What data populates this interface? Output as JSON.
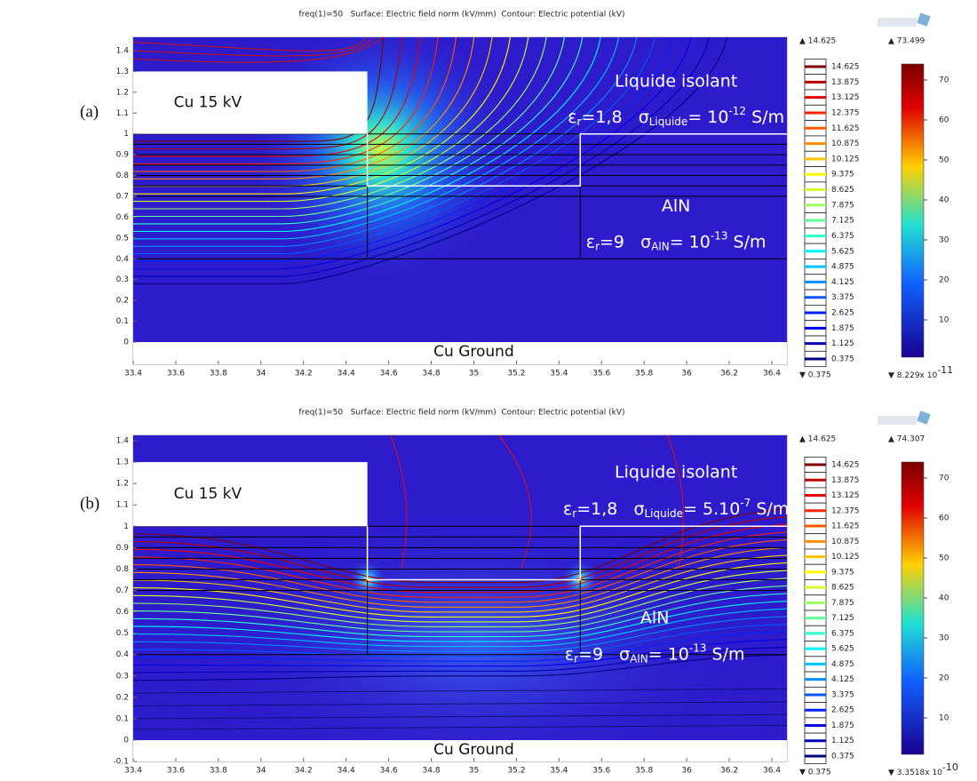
{
  "panels": [
    {
      "label": "(a)",
      "title": "freq(1)=50   Surface: Electric field norm (kV/mm)  Contour: Electric potential (kV)",
      "xticks": [
        33.4,
        33.6,
        33.8,
        34,
        34.2,
        34.4,
        34.6,
        34.8,
        35,
        35.2,
        35.4,
        35.6,
        35.8,
        36,
        36.2,
        36.4
      ],
      "yticks": [
        1.4,
        1.3,
        1.2,
        1.1,
        1,
        0.9,
        0.8,
        0.7,
        0.6,
        0.5,
        0.4,
        0.3,
        0.2,
        0.1,
        0
      ],
      "cu_electrode": "Cu 15 kV",
      "cu_ground": "Cu Ground",
      "liquid_name": "Liquide isolant",
      "liquid_props": [
        "ε",
        "r",
        "=1,8   σ",
        "Liquide",
        "= 10",
        "-12",
        " S/m"
      ],
      "aln_name": "AlN",
      "aln_props": [
        "ε",
        "r",
        "=9   σ",
        "AlN",
        "= 10",
        "-13",
        " S/m"
      ],
      "contour_max": "▲ 14.625",
      "contour_levels": [
        14.625,
        13.875,
        13.125,
        12.375,
        11.625,
        10.875,
        10.125,
        9.375,
        8.625,
        7.875,
        7.125,
        6.375,
        5.625,
        4.875,
        4.125,
        3.375,
        2.625,
        1.875,
        1.125,
        0.375
      ],
      "contour_min": "▼ 0.375",
      "colorbar_max": "▲ 73.499",
      "colorbar_ticks": [
        70,
        60,
        50,
        40,
        30,
        20,
        10
      ],
      "colorbar_min": "▼ 8.229x 10",
      "colorbar_min_exp": "-11"
    },
    {
      "label": "(b)",
      "title": "freq(1)=50   Surface: Electric field norm (kV/mm)  Contour: Electric potential (kV)",
      "xticks": [
        33.4,
        33.6,
        33.8,
        34,
        34.2,
        34.4,
        34.6,
        34.8,
        35,
        35.2,
        35.4,
        35.6,
        35.8,
        36,
        36.2,
        36.4
      ],
      "yticks": [
        1.4,
        1.3,
        1.2,
        1.1,
        1,
        0.9,
        0.8,
        0.7,
        0.6,
        0.5,
        0.4,
        0.3,
        0.2,
        0.1,
        0,
        -0.1
      ],
      "cu_electrode": "Cu 15 kV",
      "cu_ground": "Cu Ground",
      "liquid_name": "Liquide isolant",
      "liquid_props": [
        "ε",
        "r",
        "=1,8   σ",
        "Liquide",
        "= 5.10",
        "-7",
        " S/m"
      ],
      "aln_name": "AlN",
      "aln_props": [
        "ε",
        "r",
        "=9   σ",
        "AlN",
        "= 10",
        "-13",
        " S/m"
      ],
      "contour_max": "▲ 14.625",
      "contour_levels": [
        14.625,
        13.875,
        13.125,
        12.375,
        11.625,
        10.875,
        10.125,
        9.375,
        8.625,
        7.875,
        7.125,
        6.375,
        5.625,
        4.875,
        4.125,
        3.375,
        2.625,
        1.875,
        1.125,
        0.375
      ],
      "contour_min": "▼ 0.375",
      "colorbar_max": "▲ 74.307",
      "colorbar_ticks": [
        70,
        60,
        50,
        40,
        30,
        20,
        10
      ],
      "colorbar_min": "▼ 3.3518x 10",
      "colorbar_min_exp": "-10"
    }
  ]
}
